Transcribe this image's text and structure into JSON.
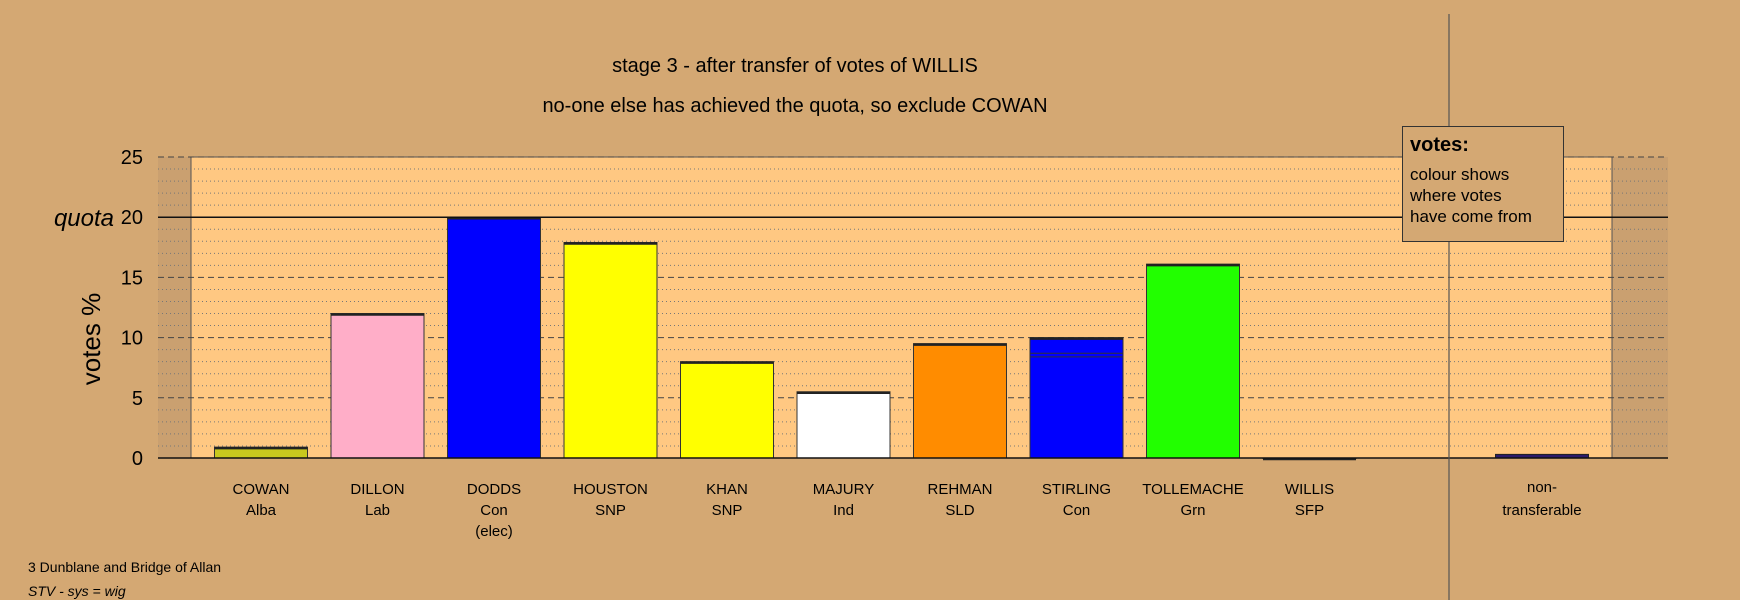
{
  "chart_data": {
    "type": "bar",
    "title": "stage 3 - after transfer of votes of WILLIS",
    "subtitle": "no-one else has achieved the quota, so exclude COWAN",
    "ylabel": "votes %",
    "ylim": [
      0,
      25
    ],
    "yticks": [
      "0",
      "5",
      "10",
      "15",
      "20",
      "25"
    ],
    "quota": 20,
    "quota_label": "quota",
    "grid": true,
    "categories": [
      {
        "name": "COWAN",
        "party": "Alba",
        "note": ""
      },
      {
        "name": "DILLON",
        "party": "Lab",
        "note": ""
      },
      {
        "name": "DODDS",
        "party": "Con",
        "note": "(elec)"
      },
      {
        "name": "HOUSTON",
        "party": "SNP",
        "note": ""
      },
      {
        "name": "KHAN",
        "party": "SNP",
        "note": ""
      },
      {
        "name": "MAJURY",
        "party": "Ind",
        "note": ""
      },
      {
        "name": "REHMAN",
        "party": "SLD",
        "note": ""
      },
      {
        "name": "STIRLING",
        "party": "Con",
        "note": ""
      },
      {
        "name": "TOLLEMACHE",
        "party": "Grn",
        "note": ""
      },
      {
        "name": "WILLIS",
        "party": "SFP",
        "note": ""
      }
    ],
    "values": [
      0.9,
      12.0,
      20.0,
      17.9,
      8.0,
      5.5,
      9.5,
      10.0,
      16.1,
      0.0
    ],
    "colors": [
      "#c8c81e",
      "#ffaec8",
      "#0000ff",
      "#ffff00",
      "#ffff00",
      "#ffffff",
      "#ff8c00",
      "#0000ff",
      "#22ff00",
      "#8b4513"
    ],
    "non_transferable": {
      "label_1": "non-",
      "label_2": "transferable",
      "value": 0.3,
      "color": "#2b1a6b"
    }
  },
  "legend": {
    "title": "votes:",
    "lines": [
      "colour shows",
      "where votes",
      "have come from"
    ]
  },
  "footer": {
    "ward": "3 Dunblane and Bridge of Allan",
    "system": "STV - sys = wig"
  }
}
